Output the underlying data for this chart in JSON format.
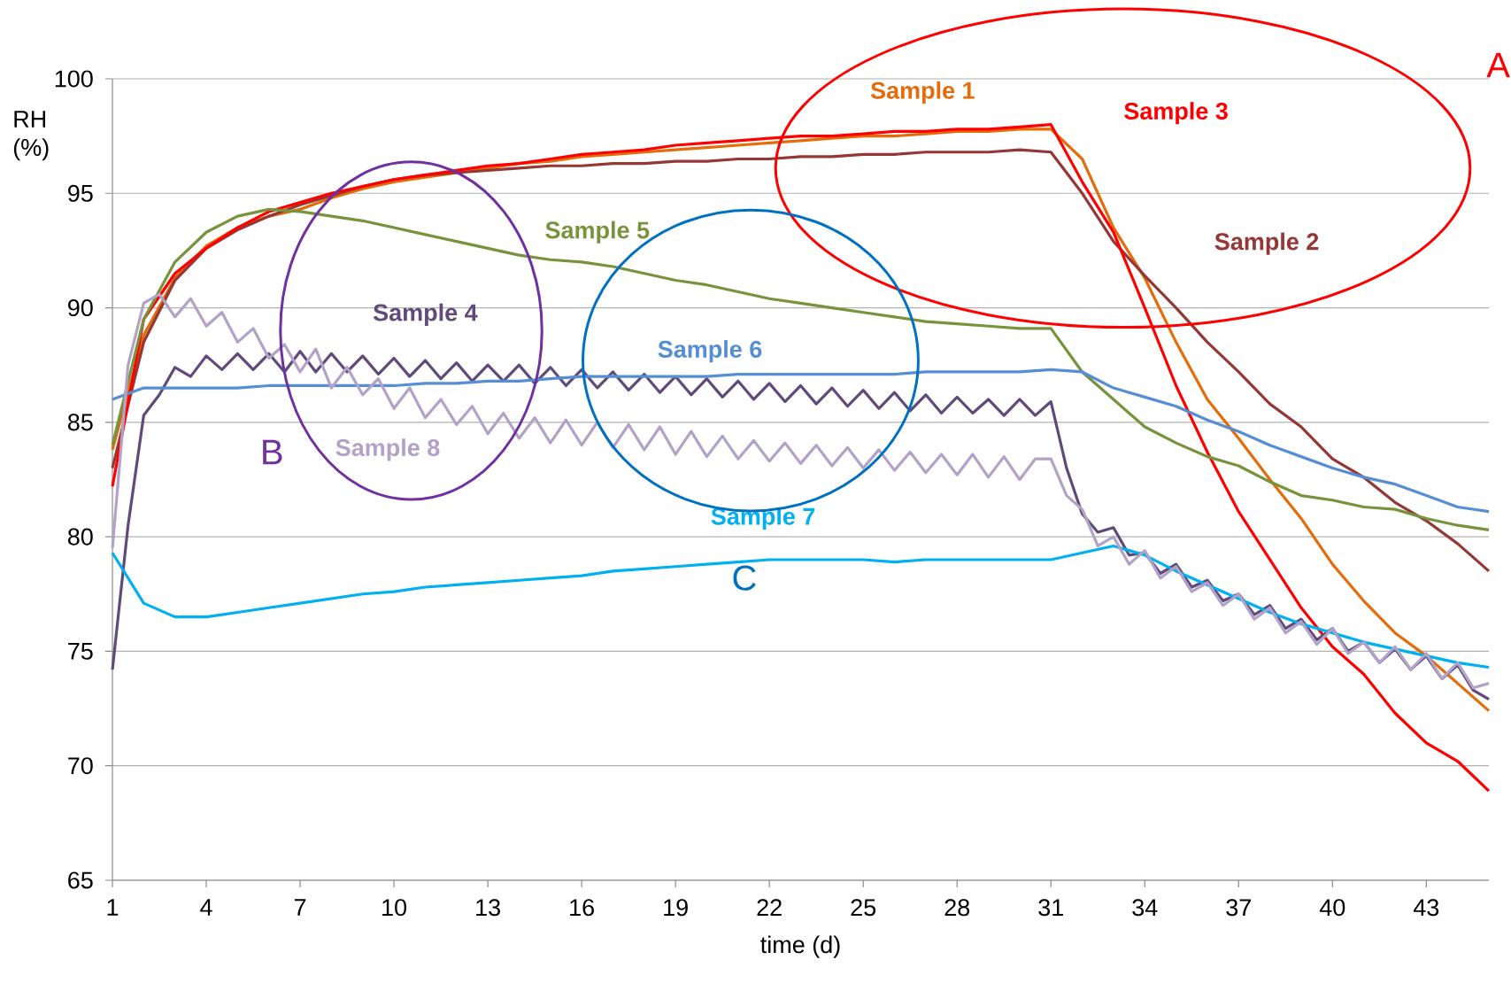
{
  "chart_data": {
    "type": "line",
    "xlabel": "time (d)",
    "ylabel": "RH (%)",
    "x": [
      1,
      2,
      3,
      4,
      5,
      6,
      7,
      8,
      9,
      10,
      11,
      12,
      13,
      14,
      15,
      16,
      17,
      18,
      19,
      20,
      21,
      22,
      23,
      24,
      25,
      26,
      27,
      28,
      29,
      30,
      31,
      32,
      33,
      34,
      35,
      36,
      37,
      38,
      39,
      40,
      41,
      42,
      43,
      44,
      45
    ],
    "xlim": [
      1,
      45
    ],
    "xticks": [
      1,
      4,
      7,
      10,
      13,
      16,
      19,
      22,
      25,
      28,
      31,
      34,
      37,
      40,
      43
    ],
    "ylim": [
      65,
      100
    ],
    "yticks": [
      65,
      70,
      75,
      80,
      85,
      90,
      95,
      100
    ],
    "grid": "y",
    "legend": false,
    "marker": "none",
    "line_style": "solid",
    "series": [
      {
        "name": "Sample 1",
        "color": "#e46c0a",
        "values": [
          83.8,
          88.8,
          91.3,
          92.7,
          93.5,
          94.0,
          94.3,
          94.8,
          95.2,
          95.5,
          95.7,
          95.9,
          96.1,
          96.3,
          96.4,
          96.6,
          96.7,
          96.8,
          96.9,
          97.0,
          97.1,
          97.2,
          97.3,
          97.4,
          97.5,
          97.5,
          97.6,
          97.7,
          97.7,
          97.8,
          97.8,
          96.5,
          93.5,
          91.3,
          88.5,
          86.0,
          84.3,
          82.5,
          80.8,
          78.8,
          77.2,
          75.8,
          74.8,
          73.6,
          72.4
        ]
      },
      {
        "name": "Sample 2",
        "color": "#953735",
        "values": [
          83.0,
          88.5,
          91.2,
          92.6,
          93.4,
          94.0,
          94.5,
          94.9,
          95.3,
          95.6,
          95.8,
          95.9,
          96.0,
          96.1,
          96.2,
          96.2,
          96.3,
          96.3,
          96.4,
          96.4,
          96.5,
          96.5,
          96.6,
          96.6,
          96.7,
          96.7,
          96.8,
          96.8,
          96.8,
          96.9,
          96.8,
          95.0,
          92.9,
          91.4,
          90.0,
          88.5,
          87.2,
          85.8,
          84.8,
          83.4,
          82.6,
          81.5,
          80.7,
          79.7,
          78.5
        ]
      },
      {
        "name": "Sample 3",
        "color": "#ff0000",
        "values": [
          82.2,
          89.5,
          91.5,
          92.6,
          93.5,
          94.2,
          94.6,
          95.0,
          95.3,
          95.6,
          95.8,
          96.0,
          96.2,
          96.3,
          96.5,
          96.7,
          96.8,
          96.9,
          97.1,
          97.2,
          97.3,
          97.4,
          97.5,
          97.5,
          97.6,
          97.7,
          97.7,
          97.8,
          97.8,
          97.9,
          98.0,
          95.5,
          93.3,
          90.0,
          86.6,
          83.7,
          81.1,
          79.0,
          76.9,
          75.2,
          74.0,
          72.3,
          71.0,
          70.2,
          68.9
        ]
      },
      {
        "name": "Sample 4",
        "color": "#604a7b",
        "x": [
          1,
          1.5,
          2,
          2.5,
          3,
          3.5,
          4,
          4.5,
          5,
          5.5,
          6,
          6.5,
          7,
          7.5,
          8,
          8.5,
          9,
          9.5,
          10,
          10.5,
          11,
          11.5,
          12,
          12.5,
          13,
          13.5,
          14,
          14.5,
          15,
          15.5,
          16,
          16.5,
          17,
          17.5,
          18,
          18.5,
          19,
          19.5,
          20,
          20.5,
          21,
          21.5,
          22,
          22.5,
          23,
          23.5,
          24,
          24.5,
          25,
          25.5,
          26,
          26.5,
          27,
          27.5,
          28,
          28.5,
          29,
          29.5,
          30,
          30.5,
          31,
          31.5,
          32,
          32.5,
          33,
          33.5,
          34,
          34.5,
          35,
          35.5,
          36,
          36.5,
          37,
          37.5,
          38,
          38.5,
          39,
          39.5,
          40,
          40.5,
          41,
          41.5,
          42,
          42.5,
          43,
          43.5,
          44,
          44.5,
          45
        ],
        "values": [
          74.2,
          80.5,
          85.3,
          86.2,
          87.4,
          87.0,
          87.9,
          87.3,
          88.0,
          87.3,
          88.0,
          87.2,
          88.1,
          87.2,
          88.0,
          87.2,
          87.9,
          87.1,
          87.8,
          87.0,
          87.7,
          86.9,
          87.6,
          86.8,
          87.5,
          86.8,
          87.5,
          86.7,
          87.4,
          86.6,
          87.3,
          86.5,
          87.2,
          86.4,
          87.1,
          86.3,
          87.0,
          86.2,
          86.9,
          86.1,
          86.8,
          86.0,
          86.7,
          85.9,
          86.6,
          85.8,
          86.5,
          85.7,
          86.4,
          85.6,
          86.3,
          85.5,
          86.2,
          85.4,
          86.1,
          85.4,
          86.0,
          85.3,
          86.0,
          85.3,
          85.9,
          83.0,
          81.0,
          80.2,
          80.4,
          79.2,
          79.3,
          78.4,
          78.8,
          77.8,
          78.1,
          77.2,
          77.5,
          76.6,
          77.0,
          76.0,
          76.4,
          75.5,
          76.0,
          75.0,
          75.4,
          74.5,
          75.1,
          74.2,
          74.8,
          73.8,
          74.4,
          73.3,
          72.9
        ]
      },
      {
        "name": "Sample 5",
        "color": "#77933c",
        "values": [
          84.0,
          89.5,
          92.0,
          93.3,
          94.0,
          94.3,
          94.2,
          94.0,
          93.8,
          93.5,
          93.2,
          92.9,
          92.6,
          92.3,
          92.1,
          92.0,
          91.8,
          91.5,
          91.2,
          91.0,
          90.7,
          90.4,
          90.2,
          90.0,
          89.8,
          89.6,
          89.4,
          89.3,
          89.2,
          89.1,
          89.1,
          87.2,
          86.0,
          84.8,
          84.1,
          83.5,
          83.1,
          82.4,
          81.8,
          81.6,
          81.3,
          81.2,
          80.8,
          80.5,
          80.3
        ]
      },
      {
        "name": "Sample 6",
        "color": "#558ed5",
        "values": [
          86.0,
          86.5,
          86.5,
          86.5,
          86.5,
          86.6,
          86.6,
          86.6,
          86.6,
          86.6,
          86.7,
          86.7,
          86.8,
          86.8,
          86.9,
          87.0,
          87.0,
          87.0,
          87.0,
          87.0,
          87.1,
          87.1,
          87.1,
          87.1,
          87.1,
          87.1,
          87.2,
          87.2,
          87.2,
          87.2,
          87.3,
          87.2,
          86.5,
          86.1,
          85.7,
          85.1,
          84.6,
          84.0,
          83.5,
          83.0,
          82.6,
          82.3,
          81.8,
          81.3,
          81.1
        ]
      },
      {
        "name": "Sample 7",
        "color": "#00b0f0",
        "values": [
          79.3,
          77.1,
          76.5,
          76.5,
          76.7,
          76.9,
          77.1,
          77.3,
          77.5,
          77.6,
          77.8,
          77.9,
          78.0,
          78.1,
          78.2,
          78.3,
          78.5,
          78.6,
          78.7,
          78.8,
          78.9,
          79.0,
          79.0,
          79.0,
          79.0,
          78.9,
          79.0,
          79.0,
          79.0,
          79.0,
          79.0,
          79.3,
          79.6,
          79.2,
          78.5,
          77.9,
          77.3,
          76.7,
          76.2,
          75.8,
          75.4,
          75.1,
          74.8,
          74.5,
          74.3
        ]
      },
      {
        "name": "Sample 8",
        "color": "#b3a2c7",
        "x": [
          1,
          1.5,
          2,
          2.5,
          3,
          3.5,
          4,
          4.5,
          5,
          5.5,
          6,
          6.5,
          7,
          7.5,
          8,
          8.5,
          9,
          9.5,
          10,
          10.5,
          11,
          11.5,
          12,
          12.5,
          13,
          13.5,
          14,
          14.5,
          15,
          15.5,
          16,
          16.5,
          17,
          17.5,
          18,
          18.5,
          19,
          19.5,
          20,
          20.5,
          21,
          21.5,
          22,
          22.5,
          23,
          23.5,
          24,
          24.5,
          25,
          25.5,
          26,
          26.5,
          27,
          27.5,
          28,
          28.5,
          29,
          29.5,
          30,
          30.5,
          31,
          31.5,
          32,
          32.5,
          33,
          33.5,
          34,
          34.5,
          35,
          35.5,
          36,
          36.5,
          37,
          37.5,
          38,
          38.5,
          39,
          39.5,
          40,
          40.5,
          41,
          41.5,
          42,
          42.5,
          43,
          43.5,
          44,
          44.5,
          45
        ],
        "values": [
          79.5,
          87.5,
          90.2,
          90.6,
          89.6,
          90.4,
          89.2,
          89.8,
          88.5,
          89.1,
          87.8,
          88.4,
          87.2,
          88.2,
          86.5,
          87.4,
          86.2,
          86.9,
          85.6,
          86.5,
          85.2,
          86.0,
          84.9,
          85.7,
          84.5,
          85.4,
          84.3,
          85.2,
          84.1,
          85.1,
          84.0,
          85.0,
          83.9,
          84.9,
          83.8,
          84.8,
          83.6,
          84.6,
          83.5,
          84.4,
          83.4,
          84.2,
          83.3,
          84.1,
          83.2,
          84.0,
          83.1,
          83.9,
          83.0,
          83.8,
          82.9,
          83.7,
          82.8,
          83.6,
          82.7,
          83.6,
          82.6,
          83.5,
          82.5,
          83.4,
          83.4,
          81.8,
          81.2,
          79.6,
          80.0,
          78.8,
          79.4,
          78.2,
          78.7,
          77.6,
          78.0,
          77.0,
          77.5,
          76.4,
          76.9,
          75.8,
          76.3,
          75.3,
          76.0,
          74.9,
          75.4,
          74.5,
          75.2,
          74.2,
          74.9,
          73.8,
          74.5,
          73.4,
          73.6
        ]
      }
    ],
    "annotations": [
      "A",
      "B",
      "C"
    ]
  }
}
